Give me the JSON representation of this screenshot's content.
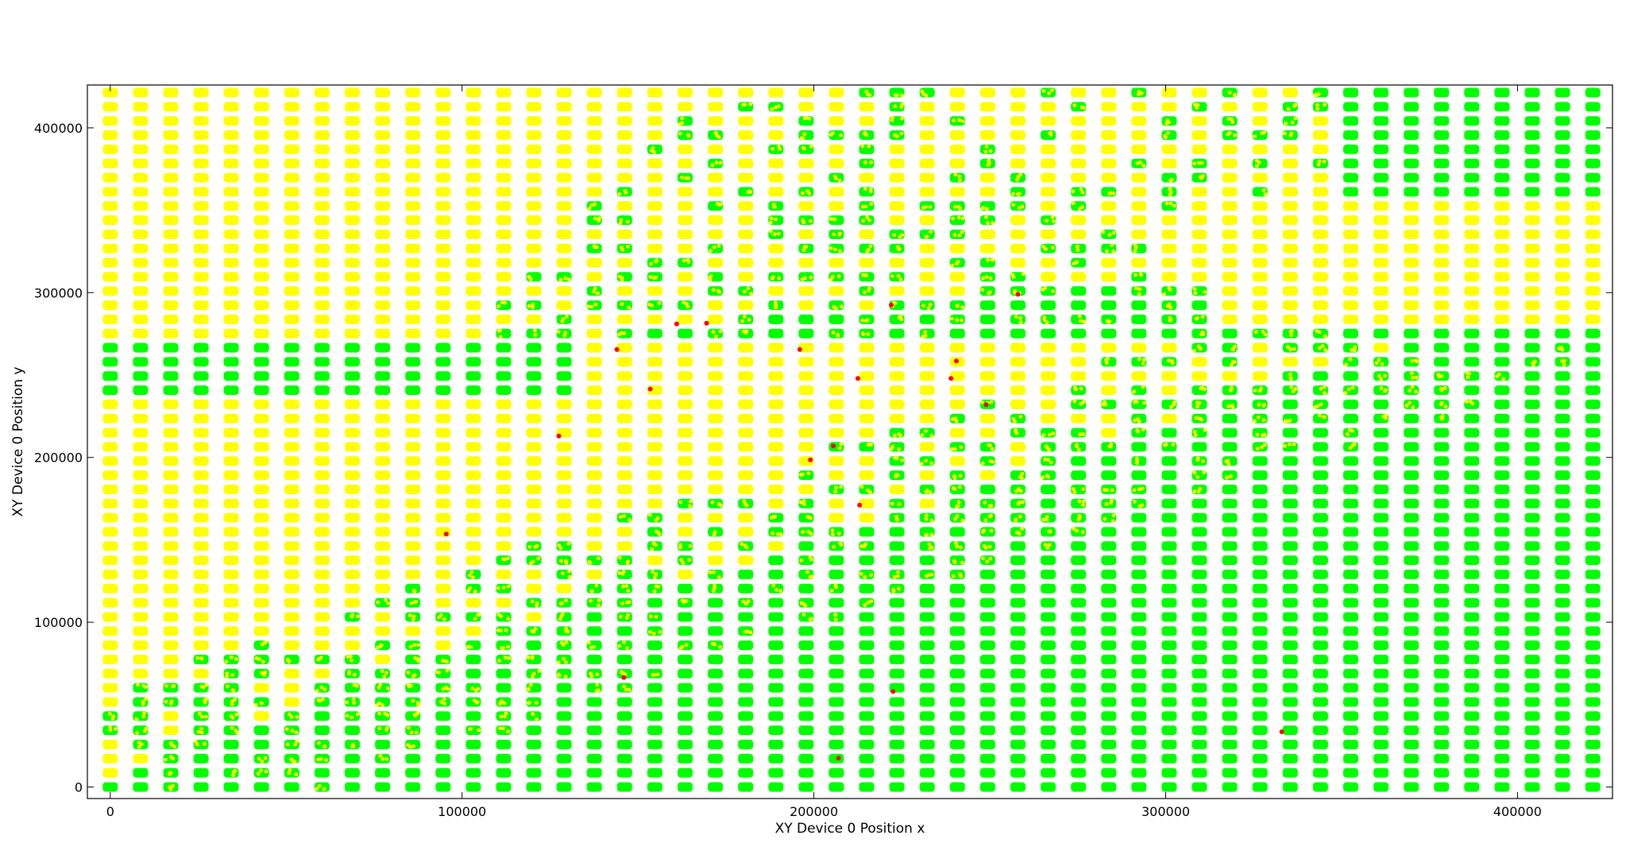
{
  "chart_data": {
    "type": "scatter",
    "title": "",
    "xlabel": "XY Device 0 Position  x",
    "ylabel": "XY Device 0 Position  y",
    "xlim": [
      -6500,
      427000
    ],
    "ylim": [
      -7000,
      426000
    ],
    "xticks": [
      0,
      100000,
      200000,
      300000,
      400000
    ],
    "yticks": [
      0,
      100000,
      200000,
      300000,
      400000
    ],
    "xtick_labels": [
      "0",
      "100000",
      "200000",
      "300000",
      "400000"
    ],
    "ytick_labels": [
      "0",
      "100000",
      "200000",
      "300000",
      "400000"
    ],
    "grid": false,
    "legend": "none",
    "grid_layout": {
      "columns": 50,
      "rows": 50,
      "x_start": 0,
      "x_step": 8600,
      "y_start": 0,
      "y_step": 8600,
      "note_colors": "yellow = one class, green = other class; mixed cells contain both"
    },
    "series": [
      {
        "color": "#ffff00",
        "marker": "o"
      },
      {
        "color": "#00ff00",
        "marker": "o"
      },
      {
        "color": "#ff0000",
        "marker": "o"
      }
    ],
    "red_points": [
      [
        95500,
        153500
      ],
      [
        127500,
        213000
      ],
      [
        144000,
        265500
      ],
      [
        146000,
        66500
      ],
      [
        153500,
        241500
      ],
      [
        161000,
        281000
      ],
      [
        169500,
        281500
      ],
      [
        196000,
        265500
      ],
      [
        199000,
        198500
      ],
      [
        205500,
        207000
      ],
      [
        207000,
        17500
      ],
      [
        212500,
        248000
      ],
      [
        213000,
        171000
      ],
      [
        222000,
        292500
      ],
      [
        222500,
        58000
      ],
      [
        239000,
        248000
      ],
      [
        240500,
        258500
      ],
      [
        249000,
        232000
      ],
      [
        258000,
        299000
      ],
      [
        333000,
        33500
      ]
    ]
  }
}
